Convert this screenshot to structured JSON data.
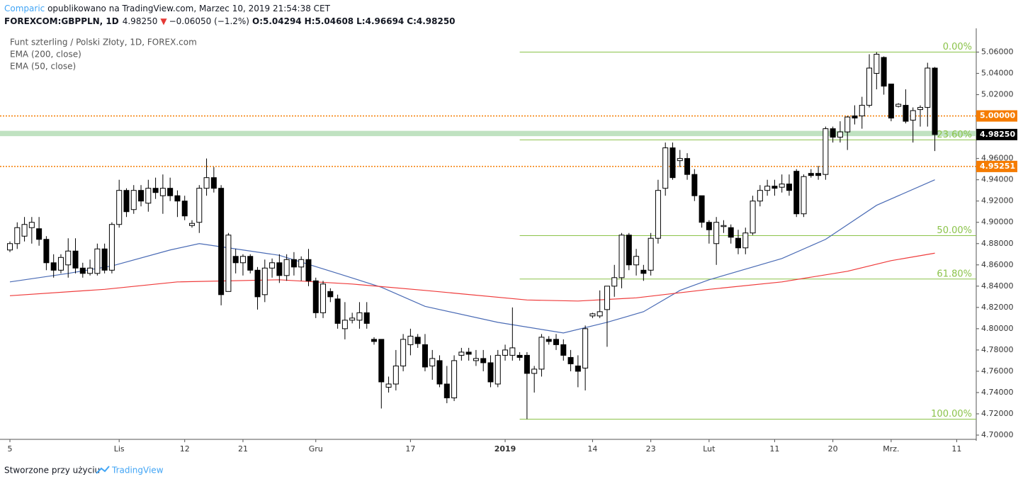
{
  "header": {
    "author": "Comparic",
    "published": " opublikowano na TradingView.com, Marzec 10, 2019 21:54:38 CET",
    "symbol": "FOREXCOM:GBPPLN, 1D",
    "last": "4.98250",
    "arrow": "▼",
    "change": "−0.06050 (−1.2%)",
    "o_label": "O:",
    "o": "5.04294",
    "h_label": "H:",
    "h": "5.04608",
    "l_label": "L:",
    "l": "4.96694",
    "c_label": "C:",
    "c": "4.98250"
  },
  "footer": {
    "text": "Stworzone przy użyciu",
    "brand": "TradingView"
  },
  "chart_data": {
    "type": "candlestick",
    "legend": [
      "Funt szterling / Polski Złoty, 1D, FOREX.com",
      "EMA (200, close)",
      "EMA (50, close)"
    ],
    "up_color": "#ffffff",
    "down_color": "#000000",
    "candles": [
      [
        4.874,
        4.882,
        4.872,
        4.88
      ],
      [
        4.88,
        4.9,
        4.875,
        4.895
      ],
      [
        4.887,
        4.905,
        4.882,
        4.898
      ],
      [
        4.895,
        4.905,
        4.88,
        4.9
      ],
      [
        4.894,
        4.905,
        4.878,
        4.884
      ],
      [
        4.884,
        4.887,
        4.855,
        4.862
      ],
      [
        4.862,
        4.87,
        4.848,
        4.855
      ],
      [
        4.855,
        4.87,
        4.852,
        4.867
      ],
      [
        4.86,
        4.885,
        4.848,
        4.873
      ],
      [
        4.873,
        4.885,
        4.852,
        4.857
      ],
      [
        4.857,
        4.862,
        4.848,
        4.852
      ],
      [
        4.852,
        4.865,
        4.85,
        4.857
      ],
      [
        4.852,
        4.88,
        4.85,
        4.875
      ],
      [
        4.875,
        4.88,
        4.852,
        4.855
      ],
      [
        4.855,
        4.9,
        4.852,
        4.898
      ],
      [
        4.898,
        4.94,
        4.895,
        4.93
      ],
      [
        4.93,
        4.932,
        4.905,
        4.91
      ],
      [
        4.912,
        4.935,
        4.908,
        4.93
      ],
      [
        4.93,
        4.935,
        4.915,
        4.92
      ],
      [
        4.918,
        4.94,
        4.91,
        4.932
      ],
      [
        4.932,
        4.942,
        4.922,
        4.928
      ],
      [
        4.925,
        4.945,
        4.908,
        4.932
      ],
      [
        4.932,
        4.942,
        4.92,
        4.925
      ],
      [
        4.925,
        4.93,
        4.905,
        4.92
      ],
      [
        4.92,
        4.925,
        4.902,
        4.906
      ],
      [
        4.897,
        4.902,
        4.895,
        4.899
      ],
      [
        4.9,
        4.935,
        4.89,
        4.932
      ],
      [
        4.932,
        4.96,
        4.925,
        4.942
      ],
      [
        4.942,
        4.952,
        4.928,
        4.932
      ],
      [
        4.932,
        4.935,
        4.822,
        4.832
      ],
      [
        4.835,
        4.89,
        4.835,
        4.888
      ],
      [
        4.868,
        4.875,
        4.852,
        4.862
      ],
      [
        4.862,
        4.87,
        4.85,
        4.868
      ],
      [
        4.868,
        4.87,
        4.852,
        4.855
      ],
      [
        4.855,
        4.858,
        4.818,
        4.83
      ],
      [
        4.832,
        4.865,
        4.825,
        4.857
      ],
      [
        4.857,
        4.866,
        4.848,
        4.862
      ],
      [
        4.862,
        4.87,
        4.843,
        4.85
      ],
      [
        4.85,
        4.87,
        4.845,
        4.865
      ],
      [
        4.865,
        4.872,
        4.85,
        4.858
      ],
      [
        4.858,
        4.868,
        4.845,
        4.865
      ],
      [
        4.865,
        4.875,
        4.84,
        4.845
      ],
      [
        4.845,
        4.848,
        4.81,
        4.815
      ],
      [
        4.815,
        4.845,
        4.81,
        4.842
      ],
      [
        4.835,
        4.838,
        4.825,
        4.83
      ],
      [
        4.828,
        4.832,
        4.8,
        4.805
      ],
      [
        4.8,
        4.825,
        4.79,
        4.808
      ],
      [
        4.808,
        4.815,
        4.805,
        4.81
      ],
      [
        4.808,
        4.825,
        4.8,
        4.815
      ],
      [
        4.815,
        4.825,
        4.8,
        4.805
      ],
      [
        4.79,
        4.792,
        4.785,
        4.788
      ],
      [
        4.79,
        4.79,
        4.725,
        4.75
      ],
      [
        4.745,
        4.755,
        4.74,
        4.748
      ],
      [
        4.748,
        4.78,
        4.742,
        4.765
      ],
      [
        4.765,
        4.795,
        4.76,
        4.79
      ],
      [
        4.785,
        4.8,
        4.775,
        4.793
      ],
      [
        4.792,
        4.795,
        4.782,
        4.786
      ],
      [
        4.785,
        4.795,
        4.76,
        4.764
      ],
      [
        4.765,
        4.78,
        4.752,
        4.772
      ],
      [
        4.77,
        4.775,
        4.745,
        4.748
      ],
      [
        4.748,
        4.765,
        4.73,
        4.735
      ],
      [
        4.735,
        4.775,
        4.732,
        4.77
      ],
      [
        4.775,
        4.782,
        4.77,
        4.778
      ],
      [
        4.778,
        4.782,
        4.77,
        4.776
      ],
      [
        4.77,
        4.78,
        4.765,
        4.772
      ],
      [
        4.772,
        4.78,
        4.76,
        4.768
      ],
      [
        4.768,
        4.775,
        4.745,
        4.75
      ],
      [
        4.748,
        4.78,
        4.745,
        4.775
      ],
      [
        4.775,
        4.785,
        4.77,
        4.78
      ],
      [
        4.775,
        4.82,
        4.77,
        4.782
      ],
      [
        4.775,
        4.778,
        4.77,
        4.773
      ],
      [
        4.775,
        4.778,
        4.715,
        4.758
      ],
      [
        4.758,
        4.765,
        4.74,
        4.762
      ],
      [
        4.762,
        4.795,
        4.755,
        4.792
      ],
      [
        4.79,
        4.793,
        4.785,
        4.788
      ],
      [
        4.79,
        4.795,
        4.78,
        4.785
      ],
      [
        4.785,
        4.79,
        4.77,
        4.775
      ],
      [
        4.773,
        4.78,
        4.76,
        4.767
      ],
      [
        4.765,
        4.775,
        4.745,
        4.76
      ],
      [
        4.763,
        4.803,
        4.742,
        4.8
      ],
      [
        4.812,
        4.815,
        4.81,
        4.814
      ],
      [
        4.812,
        4.836,
        4.81,
        4.816
      ],
      [
        4.818,
        4.84,
        4.783,
        4.84
      ],
      [
        4.84,
        4.86,
        4.83,
        4.848
      ],
      [
        4.848,
        4.89,
        4.838,
        4.888
      ],
      [
        4.888,
        4.89,
        4.855,
        4.86
      ],
      [
        4.86,
        4.875,
        4.85,
        4.868
      ],
      [
        4.855,
        4.86,
        4.845,
        4.852
      ],
      [
        4.855,
        4.89,
        4.85,
        4.885
      ],
      [
        4.885,
        4.94,
        4.88,
        4.93
      ],
      [
        4.932,
        4.975,
        4.925,
        4.97
      ],
      [
        4.97,
        4.975,
        4.94,
        4.942
      ],
      [
        4.958,
        4.968,
        4.952,
        4.96
      ],
      [
        4.96,
        4.965,
        4.94,
        4.945
      ],
      [
        4.945,
        4.95,
        4.92,
        4.925
      ],
      [
        4.925,
        4.925,
        4.895,
        4.9
      ],
      [
        4.9,
        4.902,
        4.88,
        4.893
      ],
      [
        4.88,
        4.905,
        4.86,
        4.9
      ],
      [
        4.896,
        4.902,
        4.89,
        4.897
      ],
      [
        4.895,
        4.898,
        4.88,
        4.886
      ],
      [
        4.885,
        4.893,
        4.87,
        4.876
      ],
      [
        4.876,
        4.895,
        4.87,
        4.89
      ],
      [
        4.89,
        4.925,
        4.888,
        4.92
      ],
      [
        4.92,
        4.935,
        4.915,
        4.93
      ],
      [
        4.93,
        4.94,
        4.925,
        4.934
      ],
      [
        4.934,
        4.94,
        4.925,
        4.932
      ],
      [
        4.933,
        4.945,
        4.928,
        4.936
      ],
      [
        4.936,
        4.945,
        4.925,
        4.93
      ],
      [
        4.948,
        4.95,
        4.905,
        4.908
      ],
      [
        4.908,
        4.945,
        4.905,
        4.943
      ],
      [
        4.946,
        4.95,
        4.942,
        4.944
      ],
      [
        4.946,
        4.953,
        4.94,
        4.944
      ],
      [
        4.945,
        4.99,
        4.94,
        4.988
      ],
      [
        4.988,
        4.99,
        4.975,
        4.98
      ],
      [
        4.98,
        4.995,
        4.975,
        4.985
      ],
      [
        4.985,
        5.0,
        4.968,
        4.999
      ],
      [
        5.0,
        5.01,
        4.992,
        4.998
      ],
      [
        5.0,
        5.018,
        4.988,
        5.01
      ],
      [
        5.01,
        5.058,
        5.008,
        5.045
      ],
      [
        5.04,
        5.06,
        5.025,
        5.058
      ],
      [
        5.055,
        5.056,
        5.02,
        5.028
      ],
      [
        5.03,
        5.03,
        4.995,
        4.998
      ],
      [
        5.009,
        5.012,
        5.008,
        5.011
      ],
      [
        5.01,
        5.025,
        4.993,
        4.995
      ],
      [
        4.996,
        5.008,
        4.975,
        5.005
      ],
      [
        5.006,
        5.01,
        4.99,
        5.008
      ],
      [
        5.008,
        5.05,
        4.99,
        5.045
      ],
      [
        5.045,
        5.046,
        4.967,
        4.9825
      ]
    ],
    "ema": [
      {
        "name": "EMA (50, close)",
        "color": "#4a6bb5",
        "x": [
          0,
          8,
          14,
          22,
          26,
          32,
          37,
          45,
          51,
          57,
          67,
          76,
          82,
          87,
          92,
          96,
          106,
          112,
          119,
          127
        ],
        "values": [
          4.844,
          4.852,
          4.859,
          4.874,
          4.88,
          4.874,
          4.869,
          4.852,
          4.839,
          4.821,
          4.806,
          4.796,
          4.806,
          4.816,
          4.836,
          4.846,
          4.866,
          4.884,
          4.916,
          4.94
        ]
      },
      {
        "name": "EMA (200, close)",
        "color": "#ef3b3b",
        "x": [
          0,
          13,
          23,
          37,
          47,
          57,
          71,
          78,
          86,
          96,
          106,
          115,
          121,
          127
        ],
        "values": [
          4.831,
          4.837,
          4.844,
          4.846,
          4.842,
          4.836,
          4.827,
          4.826,
          4.829,
          4.837,
          4.844,
          4.854,
          4.864,
          4.871
        ]
      }
    ],
    "ylim": [
      4.696,
      5.081
    ],
    "yticks": [
      {
        "value": 4.7,
        "label": "4.70000"
      },
      {
        "value": 4.72,
        "label": "4.72000"
      },
      {
        "value": 4.74,
        "label": "4.74000"
      },
      {
        "value": 4.76,
        "label": "4.76000"
      },
      {
        "value": 4.78,
        "label": "4.78000"
      },
      {
        "value": 4.8,
        "label": "4.80000"
      },
      {
        "value": 4.82,
        "label": "4.82000"
      },
      {
        "value": 4.84,
        "label": "4.84000"
      },
      {
        "value": 4.86,
        "label": "4.86000"
      },
      {
        "value": 4.88,
        "label": "4.88000"
      },
      {
        "value": 4.9,
        "label": "4.90000"
      },
      {
        "value": 4.92,
        "label": "4.92000"
      },
      {
        "value": 4.94,
        "label": "4.94000"
      },
      {
        "value": 4.96,
        "label": "4.96000"
      },
      {
        "value": 4.98,
        "label": "4.98000"
      },
      {
        "value": 5.0,
        "label": "5.00000"
      },
      {
        "value": 5.02,
        "label": "5.02000"
      },
      {
        "value": 5.04,
        "label": "5.04000"
      },
      {
        "value": 5.06,
        "label": "5.06000"
      }
    ],
    "xticks": [
      {
        "value": 0,
        "label": "5"
      },
      {
        "value": 15,
        "label": "Lis"
      },
      {
        "value": 24,
        "label": "12"
      },
      {
        "value": 32,
        "label": "21"
      },
      {
        "value": 42,
        "label": "Gru"
      },
      {
        "value": 55,
        "label": "17"
      },
      {
        "value": 68,
        "label": "2019"
      },
      {
        "value": 80,
        "label": "14"
      },
      {
        "value": 88,
        "label": "23"
      },
      {
        "value": 96,
        "label": "Lut"
      },
      {
        "value": 105,
        "label": "11"
      },
      {
        "value": 113,
        "label": "20"
      },
      {
        "value": 121,
        "label": "Mrz."
      },
      {
        "value": 130,
        "label": "11"
      }
    ],
    "hlines": [
      {
        "value": 5.0,
        "label": "5.00000",
        "color": "#f57c00"
      },
      {
        "value": 4.95251,
        "label": "4.95251",
        "color": "#f57c00"
      }
    ],
    "zone": {
      "range": [
        4.981,
        4.986
      ],
      "color": "#a5d6a7"
    },
    "last_price": {
      "value": 4.9825,
      "label": "4.98250"
    },
    "fib": {
      "start": 70,
      "color": "#8bc34a",
      "levels": [
        {
          "label": "0.00%",
          "price": 5.06
        },
        {
          "label": "23.60%",
          "price": 4.9775
        },
        {
          "label": "50.00%",
          "price": 4.8875
        },
        {
          "label": "61.80%",
          "price": 4.8467
        },
        {
          "label": "100.00%",
          "price": 4.715
        }
      ]
    }
  }
}
